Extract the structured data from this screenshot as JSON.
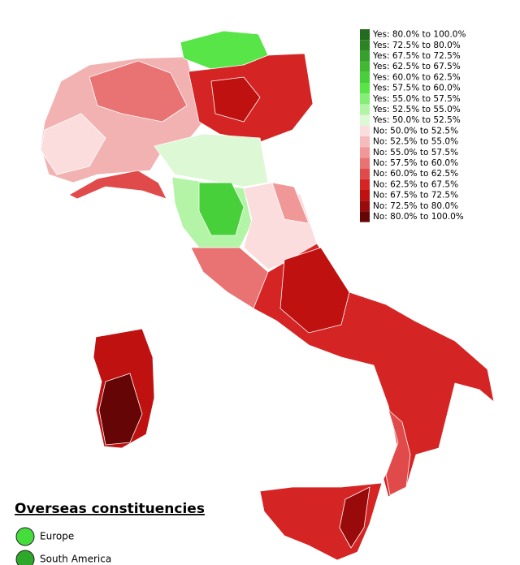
{
  "legend": {
    "items": [
      {
        "label": "Yes: 80.0% to 100.0%",
        "color": "#236b1e"
      },
      {
        "label": "Yes: 72.5% to 80.0%",
        "color": "#2c8424"
      },
      {
        "label": "Yes: 67.5% to 72.5%",
        "color": "#35a02b"
      },
      {
        "label": "Yes: 62.5% to 67.5%",
        "color": "#3fb932"
      },
      {
        "label": "Yes: 60.0% to 62.5%",
        "color": "#48d03a"
      },
      {
        "label": "Yes: 57.5% to 60.0%",
        "color": "#58e548"
      },
      {
        "label": "Yes: 55.0% to 57.5%",
        "color": "#84ee76"
      },
      {
        "label": "Yes: 52.5% to 55.0%",
        "color": "#b3f4a7"
      },
      {
        "label": "Yes: 50.0% to 52.5%",
        "color": "#dcf8d5"
      },
      {
        "label": "No: 50.0% to 52.5%",
        "color": "#fbdddd"
      },
      {
        "label": "No: 52.5% to 55.0%",
        "color": "#f6bbbb"
      },
      {
        "label": "No: 55.0% to 57.5%",
        "color": "#f09898"
      },
      {
        "label": "No: 57.5% to 60.0%",
        "color": "#e97373"
      },
      {
        "label": "No: 60.0% to 62.5%",
        "color": "#e14a4a"
      },
      {
        "label": "No: 62.5% to 67.5%",
        "color": "#d52424"
      },
      {
        "label": "No: 67.5% to 72.5%",
        "color": "#c01111"
      },
      {
        "label": "No: 72.5% to 80.0%",
        "color": "#990a0a"
      },
      {
        "label": "No: 80.0% to 100.0%",
        "color": "#650505"
      }
    ]
  },
  "overseas": {
    "title": "Overseas constituencies",
    "items": [
      {
        "label": "Europe",
        "color": "#44dd3c"
      },
      {
        "label": "South America",
        "color": "#2ea82a"
      }
    ]
  }
}
